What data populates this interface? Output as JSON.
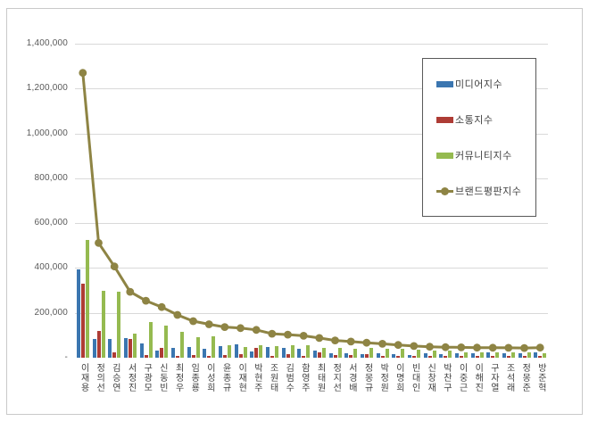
{
  "chart_data": {
    "type": "bar+line combo",
    "title": "",
    "xlabel": "",
    "ylabel": "",
    "ylim": [
      0,
      1400000
    ],
    "ytick_step": 200000,
    "ytick_labels": [
      "-",
      "200,000",
      "400,000",
      "600,000",
      "800,000",
      "1,000,000",
      "1,200,000",
      "1,400,000"
    ],
    "grid": true,
    "legend_position": "top-right",
    "categories": [
      "이재용",
      "정의선",
      "김승연",
      "서정진",
      "구광모",
      "신동빈",
      "최정우",
      "임종룡",
      "이성희",
      "윤종규",
      "이재현",
      "박현주",
      "조원태",
      "김범수",
      "함영주",
      "최태원",
      "정지선",
      "서경배",
      "정몽규",
      "박정원",
      "이명희",
      "빈대인",
      "신창재",
      "박찬구",
      "이중근",
      "이해진",
      "구자열",
      "조석래",
      "정몽준",
      "방준혁"
    ],
    "series": [
      {
        "name": "미디어지수",
        "type": "bar",
        "color": "#3b76b0",
        "values": [
          392000,
          82000,
          83000,
          89000,
          65000,
          30000,
          45000,
          48000,
          39000,
          53000,
          61000,
          27000,
          47000,
          42000,
          40000,
          30000,
          21000,
          20000,
          17000,
          21000,
          15000,
          12000,
          19000,
          17000,
          19000,
          20000,
          22000,
          20000,
          18000,
          22000
        ]
      },
      {
        "name": "소통지수",
        "type": "bar",
        "color": "#ae3c35",
        "values": [
          332000,
          118000,
          25000,
          82000,
          13000,
          42000,
          9000,
          12000,
          9000,
          12000,
          17000,
          43000,
          10000,
          14000,
          8000,
          25000,
          11000,
          12000,
          15000,
          9000,
          9000,
          8000,
          8000,
          8000,
          7000,
          8000,
          8000,
          10000,
          8000,
          9000
        ]
      },
      {
        "name": "커뮤니티지수",
        "type": "bar",
        "color": "#95ba50",
        "values": [
          525000,
          300000,
          293000,
          106000,
          160000,
          142000,
          115000,
          91000,
          96000,
          56000,
          47000,
          55000,
          53000,
          55000,
          55000,
          45000,
          43000,
          39000,
          43000,
          40000,
          38000,
          35000,
          32000,
          30000,
          25000,
          24000,
          23000,
          23000,
          22000,
          20000
        ]
      },
      {
        "name": "브랜드평판지수",
        "type": "line",
        "color": "#8e8444",
        "values": [
          1270000,
          512000,
          407000,
          294000,
          254000,
          226000,
          191000,
          163000,
          149000,
          137000,
          132000,
          124000,
          107000,
          103000,
          98000,
          88000,
          77000,
          72000,
          67000,
          62000,
          57000,
          52000,
          49000,
          47000,
          46000,
          45000,
          44500,
          44000,
          43500,
          45000
        ]
      }
    ]
  },
  "style": {
    "gridline_color": "#d9d9d9",
    "frame_border_color": "#c9c9c9",
    "legend_border_color": "#595959",
    "ylabel_color": "#595959",
    "xlabel_color": "#3f3f3f"
  }
}
